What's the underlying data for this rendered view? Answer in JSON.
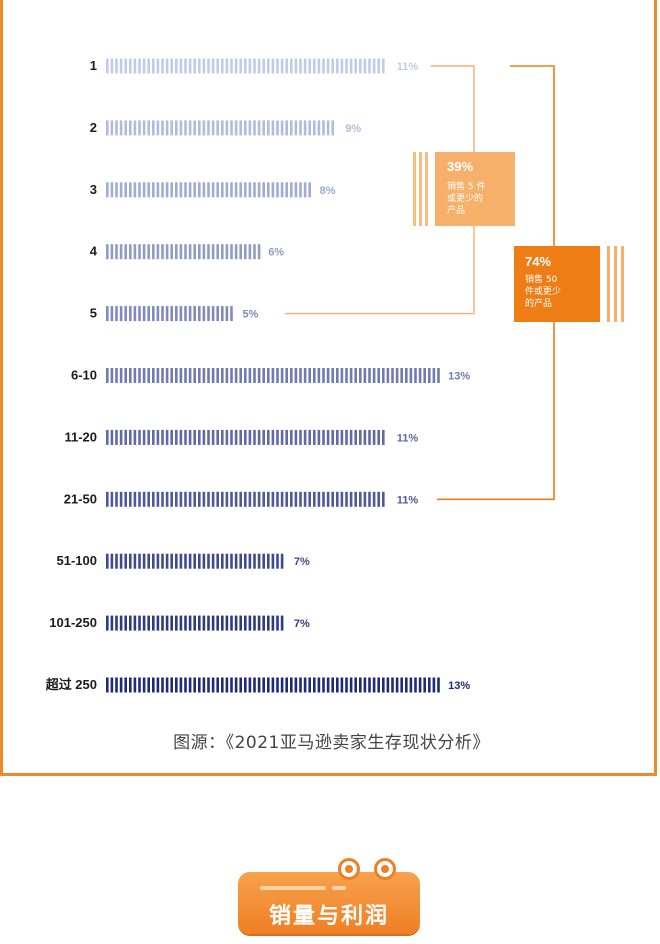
{
  "chart_data": {
    "type": "bar",
    "orientation": "horizontal",
    "categories": [
      "1",
      "2",
      "3",
      "4",
      "5",
      "6-10",
      "11-20",
      "21-50",
      "51-100",
      "101-250",
      "超过 250"
    ],
    "values": [
      11,
      9,
      8,
      6,
      5,
      13,
      11,
      11,
      7,
      7,
      13
    ],
    "value_labels": [
      "11%",
      "9%",
      "8%",
      "6%",
      "5%",
      "13%",
      "11%",
      "11%",
      "7%",
      "7%",
      "13%"
    ],
    "unit": "%",
    "colors": {
      "bar_light": "#c3cbe8",
      "bar_dark": "#1f2a78",
      "accent_light": "#f6b06a",
      "accent_dark": "#ee7d16"
    },
    "annotations": [
      {
        "covers": [
          "1",
          "2",
          "3",
          "4",
          "5"
        ],
        "percent": "39%",
        "lines": [
          "销售 5 件",
          "或更少的",
          "产品"
        ]
      },
      {
        "covers": [
          "1",
          "2",
          "3",
          "4",
          "5",
          "6-10",
          "11-20",
          "21-50"
        ],
        "percent": "74%",
        "lines": [
          "销售 50",
          "件或更少",
          "的产品"
        ]
      }
    ]
  },
  "source": "图源：《2021亚马逊卖家生存现状分析》",
  "section": {
    "title": "销量与利润"
  }
}
